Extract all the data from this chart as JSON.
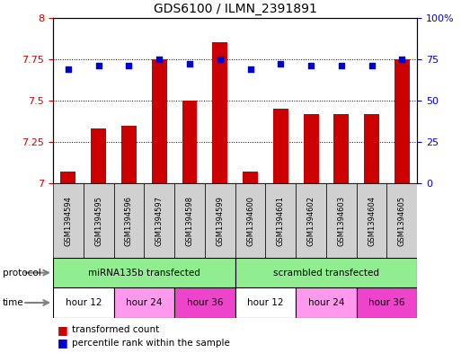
{
  "title": "GDS6100 / ILMN_2391891",
  "samples": [
    "GSM1394594",
    "GSM1394595",
    "GSM1394596",
    "GSM1394597",
    "GSM1394598",
    "GSM1394599",
    "GSM1394600",
    "GSM1394601",
    "GSM1394602",
    "GSM1394603",
    "GSM1394604",
    "GSM1394605"
  ],
  "red_bars": [
    7.07,
    7.33,
    7.35,
    7.75,
    7.5,
    7.85,
    7.07,
    7.45,
    7.42,
    7.42,
    7.42,
    7.75
  ],
  "blue_dots": [
    69,
    71,
    71,
    75,
    72,
    75,
    69,
    72,
    71,
    71,
    71,
    75
  ],
  "ylim_left": [
    7.0,
    8.0
  ],
  "ylim_right": [
    0,
    100
  ],
  "yticks_left": [
    7.0,
    7.25,
    7.5,
    7.75,
    8.0
  ],
  "yticks_right": [
    0,
    25,
    50,
    75,
    100
  ],
  "ytick_labels_left": [
    "7",
    "7.25",
    "7.5",
    "7.75",
    "8"
  ],
  "ytick_labels_right": [
    "0",
    "25",
    "50",
    "75",
    "100%"
  ],
  "bar_color": "#CC0000",
  "dot_color": "#0000CC",
  "label_color_left": "#CC0000",
  "label_color_right": "#0000CC",
  "sample_bg": "#D0D0D0",
  "protocol_color": "#90EE90",
  "time_colors": [
    "#FFFFFF",
    "#FF99EE",
    "#EE44CC"
  ],
  "time_groups": [
    {
      "label": "hour 12",
      "start": 0,
      "end": 2,
      "cidx": 0
    },
    {
      "label": "hour 24",
      "start": 2,
      "end": 4,
      "cidx": 1
    },
    {
      "label": "hour 36",
      "start": 4,
      "end": 6,
      "cidx": 2
    },
    {
      "label": "hour 12",
      "start": 6,
      "end": 8,
      "cidx": 0
    },
    {
      "label": "hour 24",
      "start": 8,
      "end": 10,
      "cidx": 1
    },
    {
      "label": "hour 36",
      "start": 10,
      "end": 12,
      "cidx": 2
    }
  ]
}
